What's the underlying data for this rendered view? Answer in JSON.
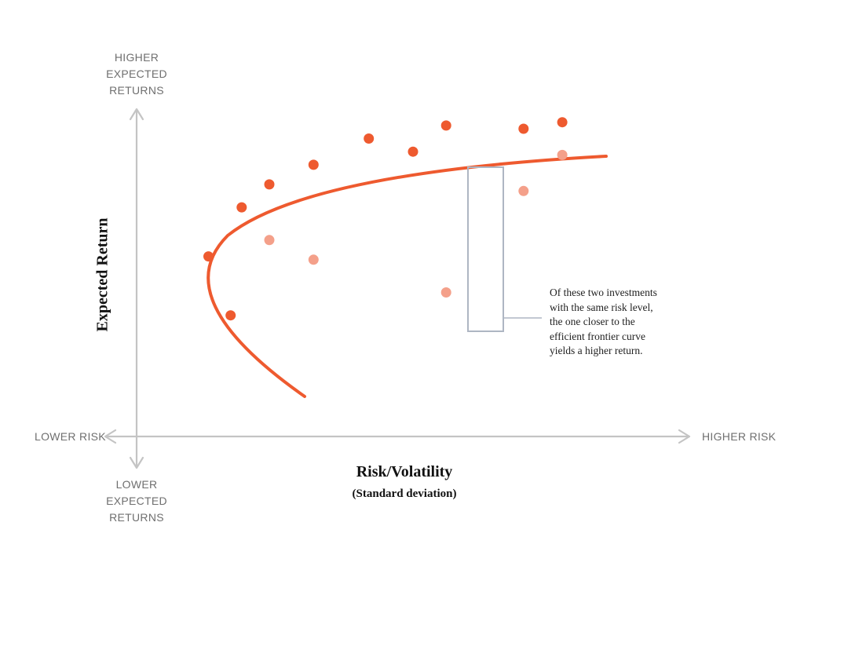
{
  "y_axis": {
    "title": "Expected Return",
    "top_label": [
      "HIGHER",
      "EXPECTED",
      "RETURNS"
    ],
    "bottom_label": [
      "LOWER",
      "EXPECTED",
      "RETURNS"
    ]
  },
  "x_axis": {
    "title": "Risk/Volatility",
    "subtitle": "(Standard deviation)",
    "left_label": "LOWER RISK",
    "right_label": "HIGHER RISK"
  },
  "annotation": {
    "lines": [
      "Of these two investments",
      "with the same risk level,",
      "the one closer to the",
      "efficient frontier curve",
      "yields a higher return."
    ]
  },
  "colors": {
    "frontier": "#ee5a2f",
    "efficient_point": "#ee5a2f",
    "inefficient_point": "#f4a08a",
    "axis": "#c4c4c4",
    "highlight_box": "#aeb6c3"
  },
  "chart_data": {
    "type": "scatter",
    "frontier_curve": "efficient frontier (sideways parabola opening right)",
    "series": [
      {
        "role": "near-frontier",
        "points": [
          {
            "x": 0.13,
            "y": 0.55
          },
          {
            "x": 0.17,
            "y": 0.37
          },
          {
            "x": 0.19,
            "y": 0.7
          },
          {
            "x": 0.24,
            "y": 0.77
          },
          {
            "x": 0.32,
            "y": 0.83
          },
          {
            "x": 0.42,
            "y": 0.91
          },
          {
            "x": 0.5,
            "y": 0.87
          },
          {
            "x": 0.56,
            "y": 0.95
          },
          {
            "x": 0.7,
            "y": 0.94
          },
          {
            "x": 0.77,
            "y": 0.96
          }
        ]
      },
      {
        "role": "below-frontier",
        "points": [
          {
            "x": 0.24,
            "y": 0.6
          },
          {
            "x": 0.32,
            "y": 0.54
          },
          {
            "x": 0.56,
            "y": 0.44
          },
          {
            "x": 0.7,
            "y": 0.75
          },
          {
            "x": 0.77,
            "y": 0.86
          }
        ]
      }
    ],
    "highlighted_pair": [
      {
        "x": 0.56,
        "y": 0.95
      },
      {
        "x": 0.56,
        "y": 0.44
      }
    ]
  }
}
